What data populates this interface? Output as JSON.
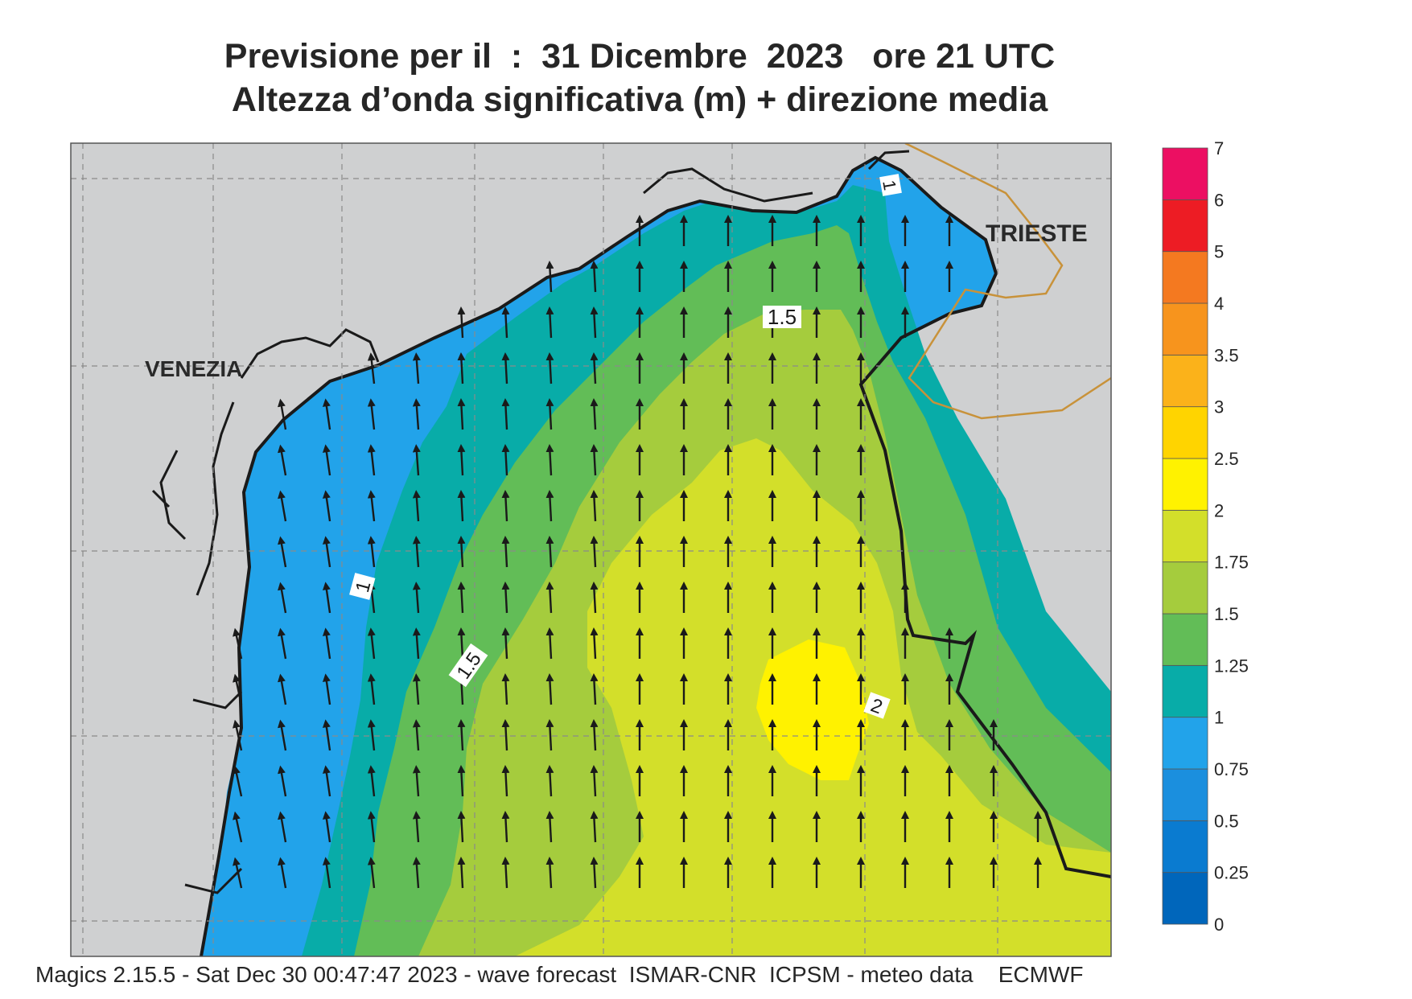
{
  "header": {
    "title_line1": "Previsione per il  :  31 Dicembre  2023   ore 21 UTC",
    "title_line2": "Altezza d’onda significativa (m) + direzione media"
  },
  "map": {
    "place_labels": [
      "VENEZIA",
      "TRIESTE"
    ],
    "contour_labels": [
      "1.5",
      "1",
      "1.5",
      "2",
      "1"
    ],
    "colors": {
      "land": "#cfd0d1",
      "coast": "#1a1a1a",
      "border": "#c8923a",
      "grid": "#8a8a8a",
      "arrow": "#1a1a1a"
    },
    "wave_direction": "north",
    "max_region": "2 m centered south-east of the basin center"
  },
  "legend": {
    "labels": [
      "0",
      "0.25",
      "0.5",
      "0.75",
      "1",
      "1.25",
      "1.5",
      "1.75",
      "2",
      "2.5",
      "3",
      "3.5",
      "4",
      "5",
      "6",
      "7"
    ],
    "colors": [
      "#0066bb",
      "#0a7bd0",
      "#1b8fde",
      "#22a3ea",
      "#08aca8",
      "#62bd57",
      "#a5cc3d",
      "#d3df2a",
      "#fff200",
      "#ffd400",
      "#fbb21a",
      "#f7941d",
      "#f47920",
      "#ed1c24",
      "#ec0f62"
    ]
  },
  "footer": {
    "text": "Magics 2.15.5 - Sat Dec 30 00:47:47 2023 - wave forecast  ISMAR-CNR  ICPSM - meteo data    ECMWF"
  }
}
